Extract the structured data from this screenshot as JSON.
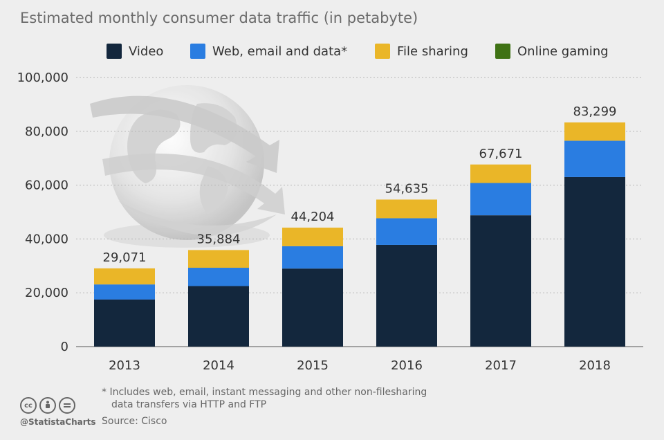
{
  "chart_data": {
    "type": "bar",
    "stacked": true,
    "title": "Estimated monthly consumer data traffic (in petabyte)",
    "categories": [
      "2013",
      "2014",
      "2015",
      "2016",
      "2017",
      "2018"
    ],
    "series": [
      {
        "name": "Video",
        "color": "#13273d",
        "values": [
          17500,
          22500,
          29000,
          37800,
          48800,
          63000
        ]
      },
      {
        "name": "Web, email and data*",
        "color": "#2a7de1",
        "values": [
          5600,
          6800,
          8300,
          9900,
          12000,
          13500
        ]
      },
      {
        "name": "File sharing",
        "color": "#eab628",
        "values": [
          5971,
          6584,
          6904,
          6935,
          6871,
          6799
        ]
      },
      {
        "name": "Online gaming",
        "color": "#3f7214",
        "values": [
          0,
          0,
          0,
          0,
          0,
          0
        ]
      }
    ],
    "totals": [
      29071,
      35884,
      44204,
      54635,
      67671,
      83299
    ],
    "total_labels": [
      "29,071",
      "35,884",
      "44,204",
      "54,635",
      "67,671",
      "83,299"
    ],
    "ylim": [
      0,
      100000
    ],
    "yticks": [
      0,
      20000,
      40000,
      60000,
      80000,
      100000
    ],
    "ytick_labels": [
      "0",
      "20,000",
      "40,000",
      "60,000",
      "80,000",
      "100,000"
    ],
    "grid": true,
    "legend_position": "top"
  },
  "footnote": {
    "line1": "* Includes web, email, instant messaging and other non-filesharing",
    "line2": "data transfers via HTTP and FTP"
  },
  "source": "Source: Cisco",
  "branding": {
    "handle": "@StatistaCharts",
    "icons": [
      "cc-icon",
      "attribution-icon",
      "no-derivatives-icon"
    ]
  }
}
